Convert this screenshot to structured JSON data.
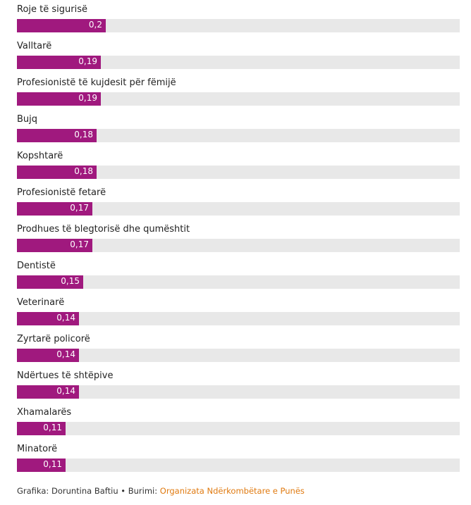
{
  "chart_data": {
    "type": "bar",
    "orientation": "horizontal",
    "categories": [
      "Roje të sigurisë",
      "Valltarë",
      "Profesionistë të kujdesit për fëmijë",
      "Bujq",
      "Kopshtarë",
      "Profesionistë fetarë",
      "Prodhues të blegtorisë dhe qumështit",
      "Dentistë",
      "Veterinarë",
      "Zyrtarë policorë",
      "Ndërtues të shtëpive",
      "Xhamalarës",
      "Minatorë"
    ],
    "values": [
      0.2,
      0.19,
      0.19,
      0.18,
      0.18,
      0.17,
      0.17,
      0.15,
      0.14,
      0.14,
      0.14,
      0.11,
      0.11
    ],
    "value_labels": [
      "0,2",
      "0,19",
      "0,19",
      "0,18",
      "0,18",
      "0,17",
      "0,17",
      "0,15",
      "0,14",
      "0,14",
      "0,14",
      "0,11",
      "0,11"
    ],
    "xlim": [
      0,
      1
    ],
    "bar_color": "#a0197e",
    "track_color": "#e8e8e8",
    "grid": false
  },
  "footer": {
    "credit": "Grafika: Doruntina Baftiu • Burimi: ",
    "source": "Organizata Ndërkombëtare e Punës",
    "source_color": "#e07a10"
  }
}
